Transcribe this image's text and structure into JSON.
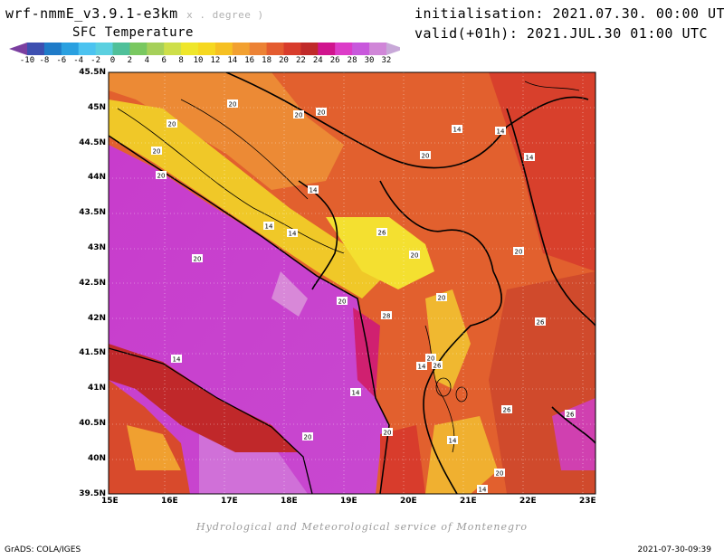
{
  "header": {
    "model": "wrf-nmmE_v3.9.1-e3km",
    "model_sub": "x . degree )",
    "field": "SFC Temperature",
    "init": "initialisation: 2021.07.30. 00:00 UTC",
    "valid": "valid(+01h): 2021.JUL.30 01:00 UTC"
  },
  "legend": {
    "ticks": [
      "-10",
      "-8",
      "-6",
      "-4",
      "-2",
      "0",
      "2",
      "4",
      "6",
      "8",
      "10",
      "12",
      "14",
      "16",
      "18",
      "20",
      "22",
      "24",
      "26",
      "28",
      "30",
      "32"
    ],
    "colors": [
      "#7b3fa0",
      "#3d4fb0",
      "#1f7bc8",
      "#2aa0e0",
      "#4cc3f0",
      "#5bd0e0",
      "#4fc09a",
      "#79c860",
      "#a6d05a",
      "#cedf4a",
      "#efe62a",
      "#f6d820",
      "#f6c022",
      "#f2a030",
      "#ec8235",
      "#e45c30",
      "#d83c2c",
      "#c02a2a",
      "#d0148e",
      "#dc3cc8",
      "#c858dc",
      "#d086d8",
      "#c8a8d8"
    ]
  },
  "map": {
    "lat_labels": [
      "45.5N",
      "45N",
      "44.5N",
      "44N",
      "43.5N",
      "43N",
      "42.5N",
      "42N",
      "41.5N",
      "41N",
      "40.5N",
      "40N",
      "39.5N"
    ],
    "lon_labels": [
      "15E",
      "16E",
      "17E",
      "18E",
      "19E",
      "20E",
      "21E",
      "22E",
      "23E"
    ],
    "contour_labels": [
      "20",
      "20",
      "20",
      "14",
      "14",
      "20",
      "20",
      "20",
      "14",
      "20",
      "14",
      "14",
      "14",
      "26",
      "20",
      "20",
      "20",
      "20",
      "20",
      "28",
      "26",
      "14",
      "14",
      "20",
      "26",
      "26",
      "20",
      "14",
      "14",
      "20",
      "26",
      "20",
      "14"
    ]
  },
  "footer": {
    "credit": "Hydrological and Meteorological service of Montenegro",
    "grads": "GrADS: COLA/IGES",
    "timestamp": "2021-07-30-09:39"
  }
}
